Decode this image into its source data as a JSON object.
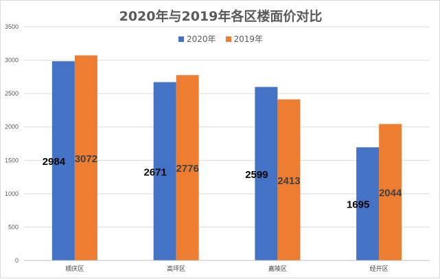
{
  "chart_data": {
    "type": "bar",
    "title": "2020年与2019年各区楼面价对比",
    "categories": [
      "顺庆区",
      "高坪区",
      "嘉陵区",
      "经开区"
    ],
    "series": [
      {
        "name": "2020年",
        "values": [
          2984,
          2671,
          2599,
          1695
        ],
        "color": "#4472c4"
      },
      {
        "name": "2019年",
        "values": [
          3072,
          2776,
          2413,
          2044
        ],
        "color": "#ed7d31"
      }
    ],
    "xlabel": "",
    "ylabel": "",
    "ylim": [
      0,
      3500
    ],
    "yticks": [
      0,
      500,
      1000,
      1500,
      2000,
      2500,
      3000,
      3500
    ],
    "grid": true,
    "legend_position": "top"
  }
}
